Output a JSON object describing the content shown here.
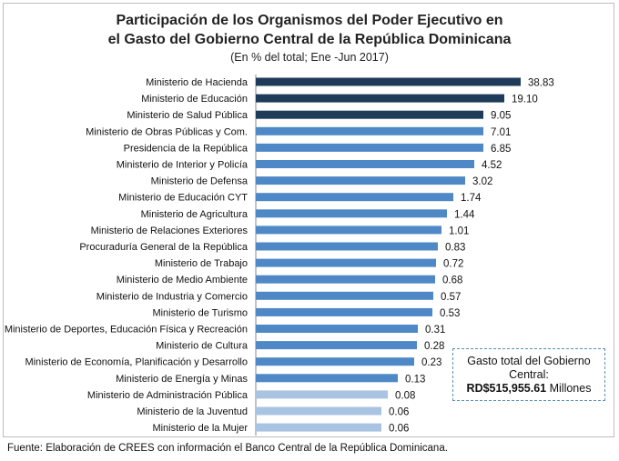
{
  "chart_data": {
    "type": "bar",
    "orientation": "horizontal",
    "title_line1": "Participación de los Organismos del Poder Ejecutivo en",
    "title_line2": "el Gasto del Gobierno Central  de la República Dominicana",
    "subtitle": "(En % del total; Ene -Jun 2017)",
    "categories": [
      "Ministerio de Hacienda",
      "Ministerio de Educación",
      "Ministerio de Salud Pública",
      "Ministerio de Obras Públicas y Com.",
      "Presidencia de la República",
      "Ministerio de Interior y Policía",
      "Ministerio de Defensa",
      "Ministerio de Educación CYT",
      "Ministerio de Agricultura",
      "Ministerio de Relaciones Exteriores",
      "Procuraduría General de la República",
      "Ministerio de Trabajo",
      "Ministerio de Medio Ambiente",
      "Ministerio de Industria y Comercio",
      "Ministerio de Turismo",
      "Ministerio de Deportes, Educación Física y Recreación",
      "Ministerio de Cultura",
      "Ministerio de Economía, Planificación y Desarrollo",
      "Ministerio de Energía y Minas",
      "Ministerio de Administración Pública",
      "Ministerio de la Juventud",
      "Ministerio de la Mujer"
    ],
    "values": [
      38.83,
      19.1,
      9.05,
      7.01,
      6.85,
      4.52,
      3.02,
      1.74,
      1.44,
      1.01,
      0.83,
      0.72,
      0.68,
      0.57,
      0.53,
      0.31,
      0.28,
      0.23,
      0.13,
      0.08,
      0.06,
      0.06
    ],
    "value_labels": [
      "38.83",
      "19.10",
      "9.05",
      "7.01",
      "6.85",
      "4.52",
      "3.02",
      "1.74",
      "1.44",
      "1.01",
      "0.83",
      "0.72",
      "0.68",
      "0.57",
      "0.53",
      "0.31",
      "0.28",
      "0.23",
      "0.13",
      "0.08",
      "0.06",
      "0.06"
    ],
    "bar_colors": [
      "#1f3b5a",
      "#1f3b5a",
      "#1f3b5a",
      "#4f88c6",
      "#4f88c6",
      "#4f88c6",
      "#4f88c6",
      "#4f88c6",
      "#4f88c6",
      "#4f88c6",
      "#4f88c6",
      "#4f88c6",
      "#4f88c6",
      "#4f88c6",
      "#4f88c6",
      "#4f88c6",
      "#4f88c6",
      "#4f88c6",
      "#4f88c6",
      "#a9c4e2",
      "#a9c4e2",
      "#a9c4e2"
    ]
  },
  "infobox": {
    "line1": "Gasto total del Gobierno",
    "line2": "Central:",
    "amount": "RD$515,955.61",
    "unit": " Millones"
  },
  "source": "Fuente: Elaboración de CREES con información el Banco Central de la República Dominicana."
}
